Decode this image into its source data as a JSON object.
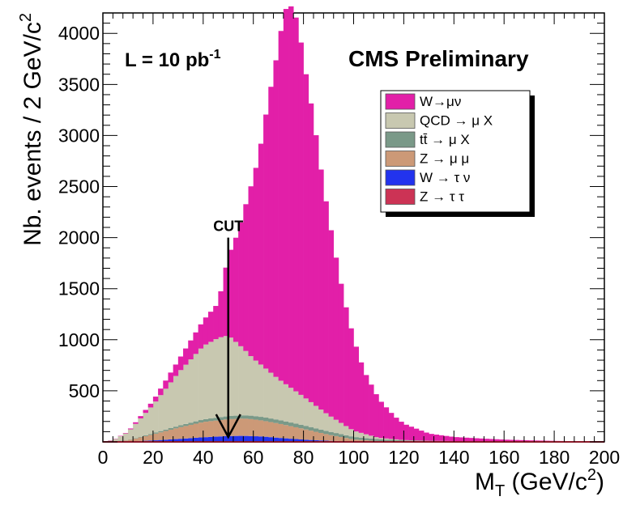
{
  "chart_data": {
    "type": "stacked-histogram",
    "xlabel_main": "M",
    "xlabel_sub": "T",
    "xlabel_rest": " (GeV/c",
    "xlabel_sup": "2",
    "xlabel_end": ")",
    "ylabel_main": "Nb. events / 2 GeV/c",
    "ylabel_sup": "2",
    "xlim": [
      0,
      200
    ],
    "ylim": [
      0,
      4200
    ],
    "bin_width": 2,
    "x_ticks": [
      0,
      20,
      40,
      60,
      80,
      100,
      120,
      140,
      160,
      180,
      200
    ],
    "y_ticks": [
      500,
      1000,
      1500,
      2000,
      2500,
      3000,
      3500,
      4000
    ],
    "luminosity_main": "L = 10 pb",
    "luminosity_sup": "-1",
    "experiment_label": "CMS Preliminary",
    "cut": {
      "x": 50,
      "label": "CUT",
      "arrow_top": 2000
    },
    "series": [
      {
        "name": "Z → τ τ",
        "color": "#cc3355",
        "anchors": [
          [
            0,
            0
          ],
          [
            20,
            2
          ],
          [
            40,
            5
          ],
          [
            50,
            7
          ],
          [
            60,
            7
          ],
          [
            70,
            5
          ],
          [
            80,
            4
          ],
          [
            100,
            1
          ],
          [
            200,
            0
          ]
        ]
      },
      {
        "name": "W → τ ν",
        "color": "#2233ee",
        "anchors": [
          [
            0,
            0
          ],
          [
            10,
            3
          ],
          [
            20,
            12
          ],
          [
            30,
            25
          ],
          [
            40,
            40
          ],
          [
            50,
            50
          ],
          [
            56,
            52
          ],
          [
            64,
            46
          ],
          [
            70,
            35
          ],
          [
            80,
            18
          ],
          [
            90,
            8
          ],
          [
            100,
            3
          ],
          [
            110,
            1
          ],
          [
            200,
            0
          ]
        ]
      },
      {
        "name": "Z → μ μ",
        "color": "#cc9977",
        "anchors": [
          [
            0,
            0
          ],
          [
            10,
            10
          ],
          [
            20,
            60
          ],
          [
            30,
            110
          ],
          [
            40,
            150
          ],
          [
            50,
            165
          ],
          [
            56,
            170
          ],
          [
            60,
            165
          ],
          [
            70,
            140
          ],
          [
            80,
            105
          ],
          [
            90,
            60
          ],
          [
            100,
            20
          ],
          [
            110,
            5
          ],
          [
            120,
            1
          ],
          [
            200,
            0
          ]
        ]
      },
      {
        "name": "tt̄ → μ X",
        "color": "#7a9988",
        "anchors": [
          [
            0,
            0
          ],
          [
            10,
            2
          ],
          [
            20,
            10
          ],
          [
            30,
            18
          ],
          [
            40,
            25
          ],
          [
            50,
            30
          ],
          [
            60,
            34
          ],
          [
            70,
            36
          ],
          [
            80,
            36
          ],
          [
            90,
            32
          ],
          [
            100,
            25
          ],
          [
            110,
            18
          ],
          [
            120,
            12
          ],
          [
            140,
            6
          ],
          [
            160,
            3
          ],
          [
            180,
            1
          ],
          [
            200,
            0
          ]
        ]
      },
      {
        "name": "QCD → μ X",
        "color": "#c8c8b0",
        "anchors": [
          [
            0,
            0
          ],
          [
            4,
            10
          ],
          [
            10,
            80
          ],
          [
            20,
            280
          ],
          [
            30,
            520
          ],
          [
            40,
            720
          ],
          [
            46,
            780
          ],
          [
            50,
            790
          ],
          [
            54,
            700
          ],
          [
            60,
            560
          ],
          [
            70,
            400
          ],
          [
            80,
            280
          ],
          [
            90,
            160
          ],
          [
            100,
            60
          ],
          [
            110,
            15
          ],
          [
            120,
            3
          ],
          [
            130,
            0
          ],
          [
            200,
            0
          ]
        ]
      },
      {
        "name": "W→μν",
        "color": "#e21fa8",
        "anchors": [
          [
            0,
            0
          ],
          [
            10,
            5
          ],
          [
            20,
            40
          ],
          [
            30,
            120
          ],
          [
            40,
            250
          ],
          [
            46,
            340
          ],
          [
            50,
            780
          ],
          [
            54,
            1100
          ],
          [
            58,
            1550
          ],
          [
            62,
            2000
          ],
          [
            66,
            2650
          ],
          [
            70,
            3250
          ],
          [
            72,
            3600
          ],
          [
            74,
            3750
          ],
          [
            76,
            3720
          ],
          [
            78,
            3600
          ],
          [
            80,
            3300
          ],
          [
            84,
            2800
          ],
          [
            88,
            2200
          ],
          [
            92,
            1700
          ],
          [
            96,
            1250
          ],
          [
            100,
            900
          ],
          [
            104,
            620
          ],
          [
            110,
            380
          ],
          [
            116,
            230
          ],
          [
            120,
            160
          ],
          [
            130,
            70
          ],
          [
            140,
            40
          ],
          [
            150,
            28
          ],
          [
            160,
            18
          ],
          [
            170,
            12
          ],
          [
            180,
            8
          ],
          [
            190,
            5
          ],
          [
            200,
            3
          ]
        ]
      }
    ]
  }
}
